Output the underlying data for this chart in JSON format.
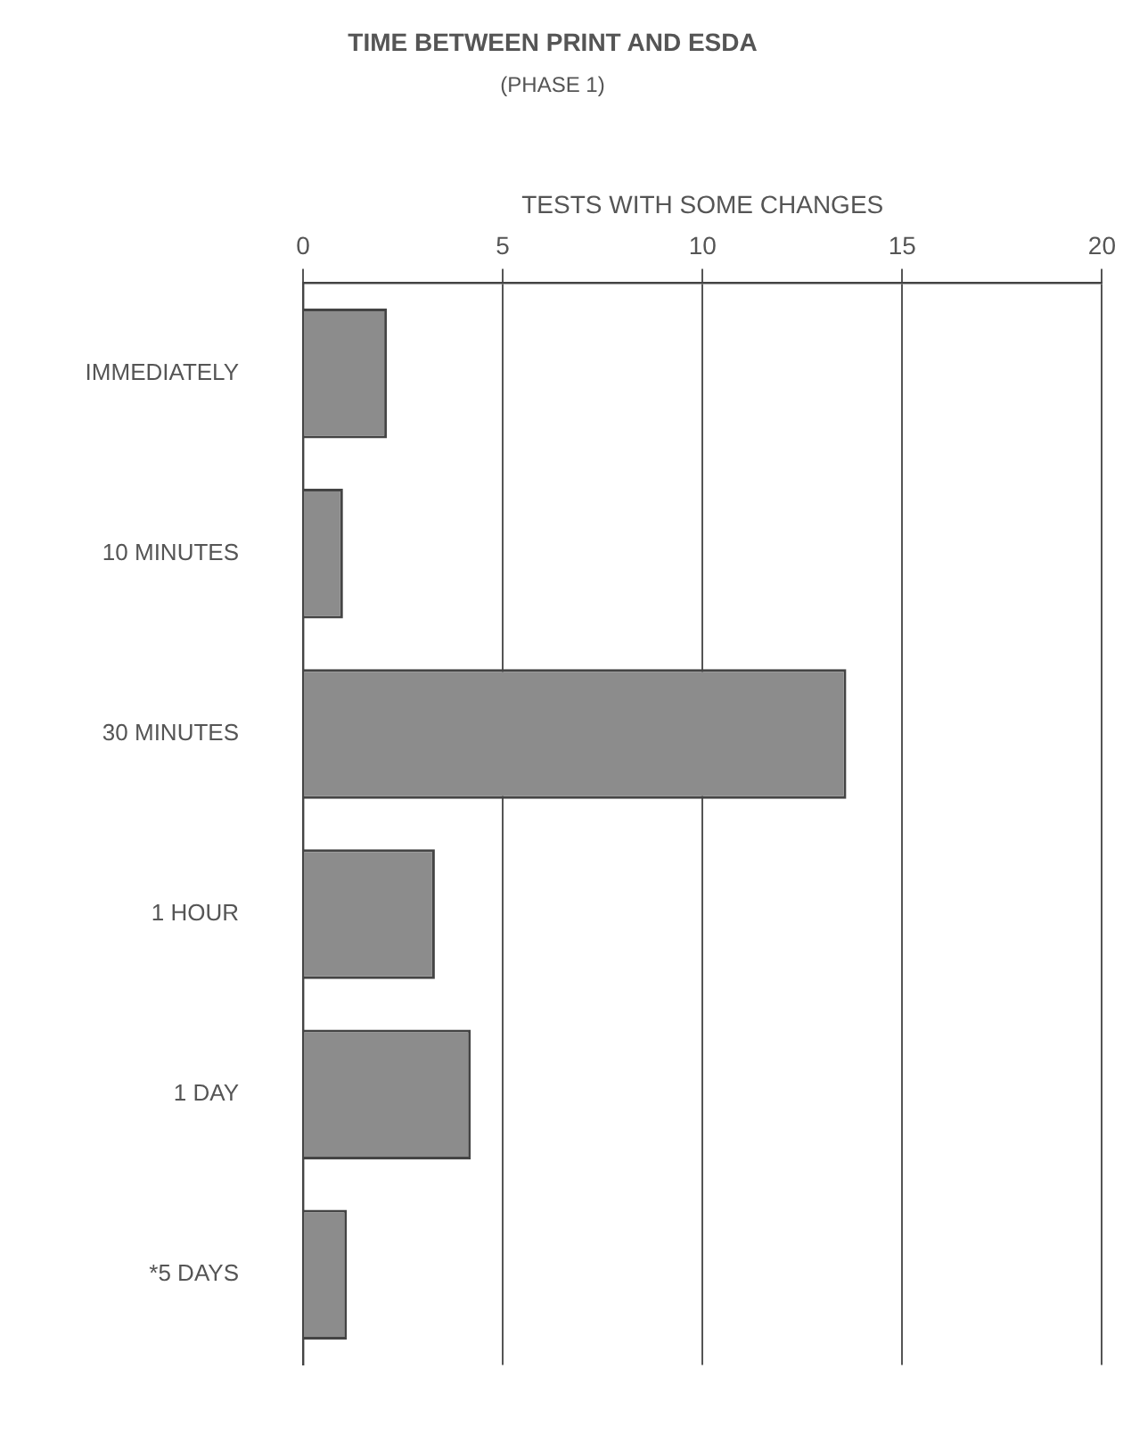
{
  "chart_data": {
    "type": "bar",
    "orientation": "horizontal",
    "title": "TIME BETWEEN PRINT AND ESDA",
    "subtitle": "(PHASE 1)",
    "xlabel": "TESTS WITH SOME CHANGES",
    "categories": [
      "IMMEDIATELY",
      "10 MINUTES",
      "30 MINUTES",
      "1 HOUR",
      "1 DAY",
      "*5 DAYS"
    ],
    "values": [
      2.1,
      1,
      13.6,
      3.3,
      4.2,
      1.1
    ],
    "color": "#8c8c8c",
    "xlim": [
      0,
      20
    ],
    "xticks": [
      0,
      5,
      10,
      15,
      20
    ],
    "grid": "x",
    "legend": false
  }
}
